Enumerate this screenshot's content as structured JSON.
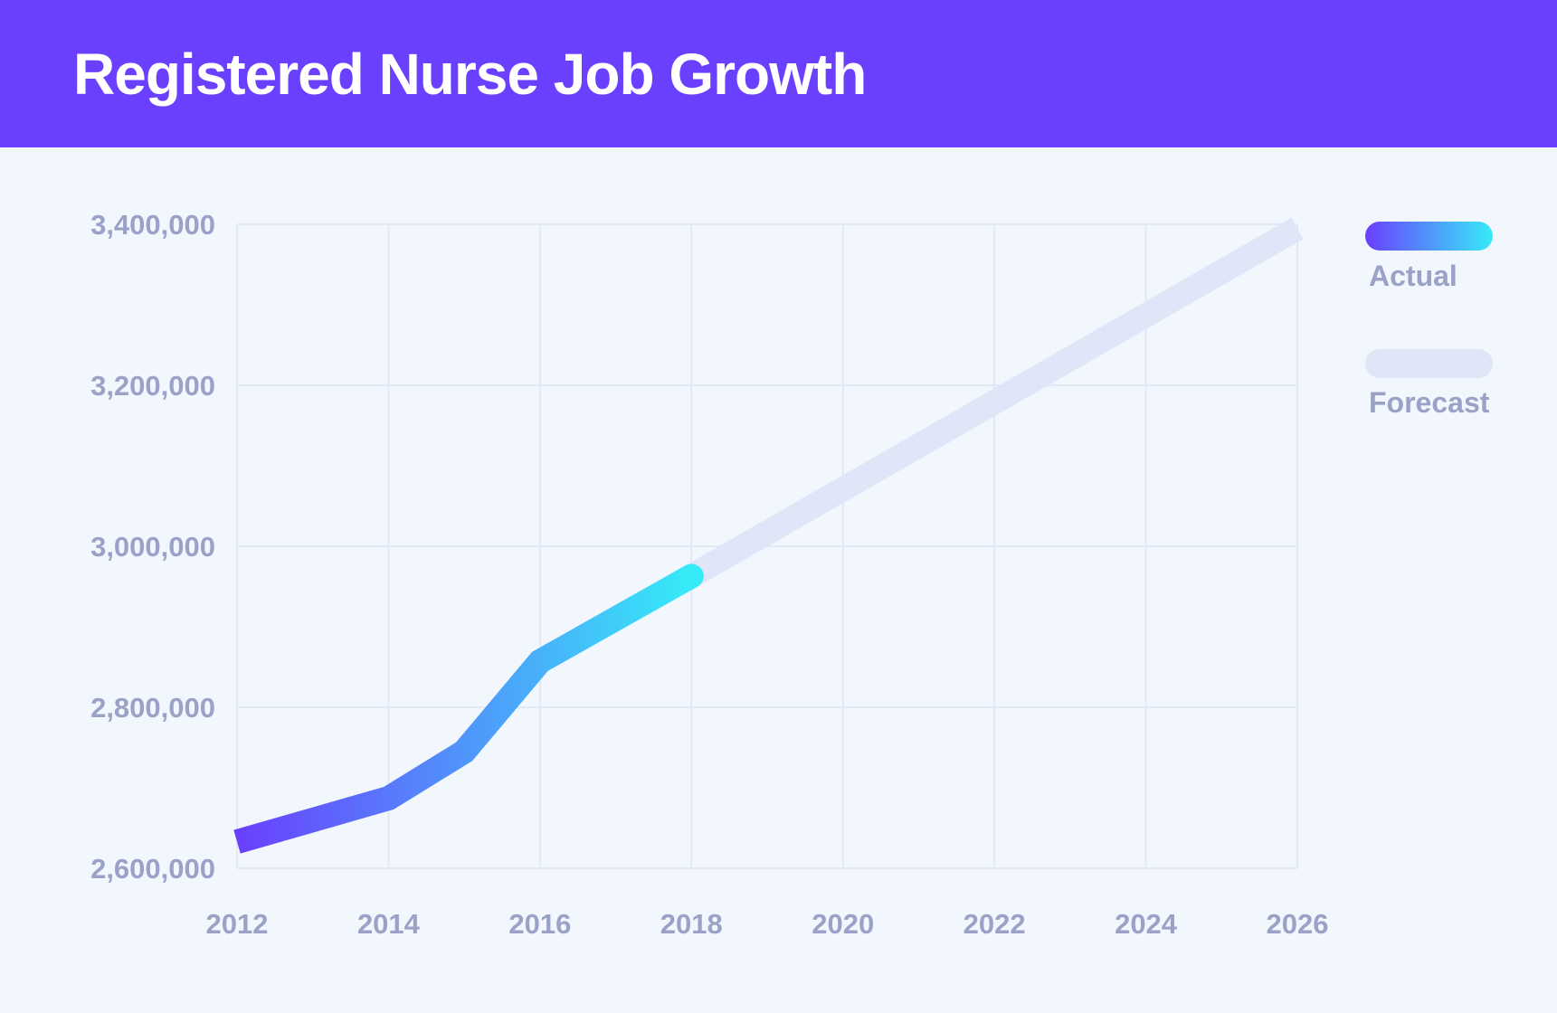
{
  "header": {
    "title": "Registered Nurse Job Growth",
    "background": "#6a3ffd"
  },
  "chart_data": {
    "type": "line",
    "title": "Registered Nurse Job Growth",
    "xlabel": "",
    "ylabel": "",
    "xlim": [
      2012,
      2026
    ],
    "ylim": [
      2600000,
      3400000
    ],
    "x_ticks": [
      2012,
      2014,
      2016,
      2018,
      2020,
      2022,
      2024,
      2026
    ],
    "x_tick_labels": [
      "2012",
      "2014",
      "2016",
      "2018",
      "2020",
      "2022",
      "2024",
      "2026"
    ],
    "y_ticks": [
      2600000,
      2800000,
      3000000,
      3200000,
      3400000
    ],
    "y_tick_labels": [
      "2,600,000",
      "2,800,000",
      "3,000,000",
      "3,200,000",
      "3,400,000"
    ],
    "grid": true,
    "legend_position": "right",
    "series": [
      {
        "name": "Actual",
        "color_start": "#6a3ffd",
        "color_end": "#36ebf8",
        "points": [
          {
            "x": 2012,
            "y": 2633000
          },
          {
            "x": 2014,
            "y": 2687000
          },
          {
            "x": 2015,
            "y": 2745000
          },
          {
            "x": 2016,
            "y": 2857000
          },
          {
            "x": 2018,
            "y": 2963000
          }
        ]
      },
      {
        "name": "Forecast",
        "color": "#dfe6f7",
        "points": [
          {
            "x": 2018,
            "y": 2963000
          },
          {
            "x": 2026,
            "y": 3395000
          }
        ]
      }
    ]
  },
  "colors": {
    "background": "#f2f6fd",
    "grid": "#e3e8f7",
    "axis_text": "#9aa3c7"
  }
}
